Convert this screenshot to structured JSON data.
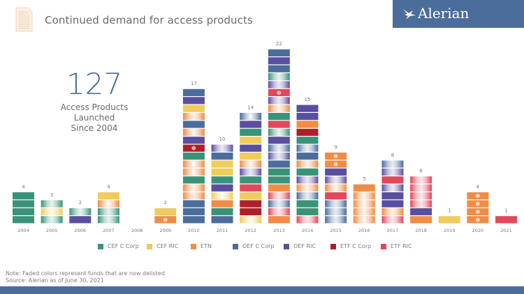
{
  "header": {
    "title": "Continued demand for access products",
    "brand": "Alerian",
    "icons": {
      "document": "document-icon",
      "logo": "bird-logo-icon"
    }
  },
  "summary": {
    "number": "127",
    "caption_lines": [
      "Access Products",
      "Launched",
      "Since 2004"
    ]
  },
  "colors": {
    "CEF C Corp": "#3a9379",
    "CEF RIC": "#efcc5c",
    "ETN": "#f08c45",
    "OEF C Corp": "#4a6d9c",
    "OEF RIC": "#5a4f9e",
    "ETF C Corp": "#b01e28",
    "ETF RIC": "#e3475a"
  },
  "footer": {
    "note": "Note: Faded colors represent funds that are now delisted",
    "source": "Source: Alerian as of June 30, 2021"
  },
  "chart_data": {
    "type": "bar",
    "stacked": true,
    "title": "Continued demand for access products",
    "xlabel": "",
    "ylabel": "",
    "ylim": [
      0,
      22
    ],
    "legend_position": "bottom",
    "legend": [
      "CEF C Corp",
      "CEF RIC",
      "ETN",
      "OEF C Corp",
      "OEF RIC",
      "ETF C Corp",
      "ETF RIC"
    ],
    "categories": [
      "2004",
      "2005",
      "2006",
      "2007",
      "2008",
      "2009",
      "2010",
      "2011",
      "2012",
      "2013",
      "2014",
      "2015",
      "2016",
      "2017",
      "2018",
      "2019",
      "2020",
      "2021"
    ],
    "totals": [
      4,
      3,
      2,
      4,
      0,
      2,
      17,
      10,
      14,
      22,
      15,
      9,
      5,
      8,
      6,
      1,
      4,
      1
    ],
    "stacks": [
      [
        {
          "t": "CEF C Corp",
          "d": false
        },
        {
          "t": "CEF C Corp",
          "d": false
        },
        {
          "t": "CEF C Corp",
          "d": false
        },
        {
          "t": "CEF C Corp",
          "d": false
        }
      ],
      [
        {
          "t": "CEF C Corp",
          "d": true
        },
        {
          "t": "CEF RIC",
          "d": true
        },
        {
          "t": "CEF C Corp",
          "d": true
        }
      ],
      [
        {
          "t": "OEF RIC",
          "d": false
        },
        {
          "t": "CEF C Corp",
          "d": true
        }
      ],
      [
        {
          "t": "CEF C Corp",
          "d": true
        },
        {
          "t": "CEF C Corp",
          "d": true
        },
        {
          "t": "ETN",
          "d": true,
          "m": true
        },
        {
          "t": "CEF RIC",
          "d": false
        }
      ],
      [],
      [
        {
          "t": "ETN",
          "d": false,
          "m": true
        },
        {
          "t": "CEF RIC",
          "d": false
        }
      ],
      [
        {
          "t": "OEF C Corp",
          "d": false
        },
        {
          "t": "OEF C Corp",
          "d": false
        },
        {
          "t": "OEF C Corp",
          "d": false
        },
        {
          "t": "ETN",
          "d": true
        },
        {
          "t": "ETN",
          "d": true
        },
        {
          "t": "CEF C Corp",
          "d": false
        },
        {
          "t": "ETN",
          "d": true,
          "m": true
        },
        {
          "t": "ETN",
          "d": true,
          "m": true
        },
        {
          "t": "CEF C Corp",
          "d": false
        },
        {
          "t": "ETF C Corp",
          "d": false,
          "m": true
        },
        {
          "t": "OEF RIC",
          "d": false
        },
        {
          "t": "ETN",
          "d": true,
          "m": true
        },
        {
          "t": "OEF C Corp",
          "d": false
        },
        {
          "t": "ETN",
          "d": true
        },
        {
          "t": "CEF RIC",
          "d": false
        },
        {
          "t": "OEF RIC",
          "d": false
        },
        {
          "t": "OEF C Corp",
          "d": false
        }
      ],
      [
        {
          "t": "OEF C Corp",
          "d": false
        },
        {
          "t": "CEF C Corp",
          "d": false
        },
        {
          "t": "ETN",
          "d": false
        },
        {
          "t": "CEF RIC",
          "d": true
        },
        {
          "t": "OEF RIC",
          "d": false
        },
        {
          "t": "CEF C Corp",
          "d": false
        },
        {
          "t": "CEF RIC",
          "d": false
        },
        {
          "t": "CEF RIC",
          "d": false
        },
        {
          "t": "OEF C Corp",
          "d": false
        },
        {
          "t": "OEF RIC",
          "d": true
        }
      ],
      [
        {
          "t": "CEF RIC",
          "d": true
        },
        {
          "t": "ETF C Corp",
          "d": false
        },
        {
          "t": "ETF C Corp",
          "d": false
        },
        {
          "t": "CEF RIC",
          "d": false
        },
        {
          "t": "ETF RIC",
          "d": false
        },
        {
          "t": "CEF C Corp",
          "d": false
        },
        {
          "t": "OEF RIC",
          "d": true
        },
        {
          "t": "ETN",
          "d": true,
          "m": true
        },
        {
          "t": "CEF RIC",
          "d": false
        },
        {
          "t": "OEF RIC",
          "d": false
        },
        {
          "t": "CEF RIC",
          "d": false
        },
        {
          "t": "CEF C Corp",
          "d": false
        },
        {
          "t": "OEF RIC",
          "d": false
        },
        {
          "t": "OEF C Corp",
          "d": true,
          "m": true
        }
      ],
      [
        {
          "t": "ETN",
          "d": false
        },
        {
          "t": "ETF RIC",
          "d": true
        },
        {
          "t": "OEF C Corp",
          "d": true
        },
        {
          "t": "ETF RIC",
          "d": true
        },
        {
          "t": "ETN",
          "d": false
        },
        {
          "t": "CEF C Corp",
          "d": false
        },
        {
          "t": "CEF C Corp",
          "d": false
        },
        {
          "t": "OEF C Corp",
          "d": false
        },
        {
          "t": "OEF RIC",
          "d": true
        },
        {
          "t": "OEF C Corp",
          "d": true
        },
        {
          "t": "OEF RIC",
          "d": false
        },
        {
          "t": "CEF C Corp",
          "d": true
        },
        {
          "t": "ETF RIC",
          "d": false
        },
        {
          "t": "CEF C Corp",
          "d": false
        },
        {
          "t": "ETN",
          "d": true
        },
        {
          "t": "OEF RIC",
          "d": true
        },
        {
          "t": "ETF RIC",
          "d": false,
          "m": true
        },
        {
          "t": "OEF RIC",
          "d": true
        },
        {
          "t": "CEF C Corp",
          "d": true
        },
        {
          "t": "OEF C Corp",
          "d": false
        },
        {
          "t": "OEF RIC",
          "d": false
        },
        {
          "t": "OEF C Corp",
          "d": false
        }
      ],
      [
        {
          "t": "ETF RIC",
          "d": true
        },
        {
          "t": "CEF C Corp",
          "d": false
        },
        {
          "t": "CEF C Corp",
          "d": false
        },
        {
          "t": "OEF C Corp",
          "d": true
        },
        {
          "t": "ETN",
          "d": true
        },
        {
          "t": "OEF RIC",
          "d": true
        },
        {
          "t": "CEF C Corp",
          "d": false
        },
        {
          "t": "ETN",
          "d": true
        },
        {
          "t": "OEF C Corp",
          "d": false
        },
        {
          "t": "OEF C Corp",
          "d": true
        },
        {
          "t": "CEF C Corp",
          "d": false
        },
        {
          "t": "ETF C Corp",
          "d": false
        },
        {
          "t": "ETN",
          "d": false
        },
        {
          "t": "OEF RIC",
          "d": false
        },
        {
          "t": "OEF RIC",
          "d": false
        }
      ],
      [
        {
          "t": "OEF C Corp",
          "d": true
        },
        {
          "t": "OEF C Corp",
          "d": true
        },
        {
          "t": "OEF C Corp",
          "d": true
        },
        {
          "t": "ETF RIC",
          "d": false
        },
        {
          "t": "ETN",
          "d": true
        },
        {
          "t": "OEF RIC",
          "d": true
        },
        {
          "t": "OEF RIC",
          "d": false
        },
        {
          "t": "ETN",
          "d": false,
          "m": true
        },
        {
          "t": "ETN",
          "d": false,
          "m": true
        }
      ],
      [
        {
          "t": "ETN",
          "d": true,
          "m": true
        },
        {
          "t": "ETN",
          "d": true
        },
        {
          "t": "ETN",
          "d": true,
          "m": true
        },
        {
          "t": "ETN",
          "d": true
        },
        {
          "t": "ETN",
          "d": false
        }
      ],
      [
        {
          "t": "ETF RIC",
          "d": true
        },
        {
          "t": "ETN",
          "d": true
        },
        {
          "t": "OEF RIC",
          "d": false
        },
        {
          "t": "OEF RIC",
          "d": false
        },
        {
          "t": "OEF RIC",
          "d": true
        },
        {
          "t": "ETF RIC",
          "d": false
        },
        {
          "t": "OEF RIC",
          "d": true
        },
        {
          "t": "OEF C Corp",
          "d": true
        }
      ],
      [
        {
          "t": "ETN",
          "d": false
        },
        {
          "t": "OEF RIC",
          "d": false
        },
        {
          "t": "ETF RIC",
          "d": true
        },
        {
          "t": "ETF RIC",
          "d": true
        },
        {
          "t": "ETF RIC",
          "d": true
        },
        {
          "t": "ETF RIC",
          "d": true
        }
      ],
      [
        {
          "t": "CEF RIC",
          "d": false
        }
      ],
      [
        {
          "t": "ETN",
          "d": false,
          "m": true
        },
        {
          "t": "ETN",
          "d": false,
          "m": true
        },
        {
          "t": "ETN",
          "d": false,
          "m": true
        },
        {
          "t": "ETN",
          "d": false,
          "m": true
        }
      ],
      [
        {
          "t": "ETF RIC",
          "d": false
        }
      ]
    ]
  }
}
